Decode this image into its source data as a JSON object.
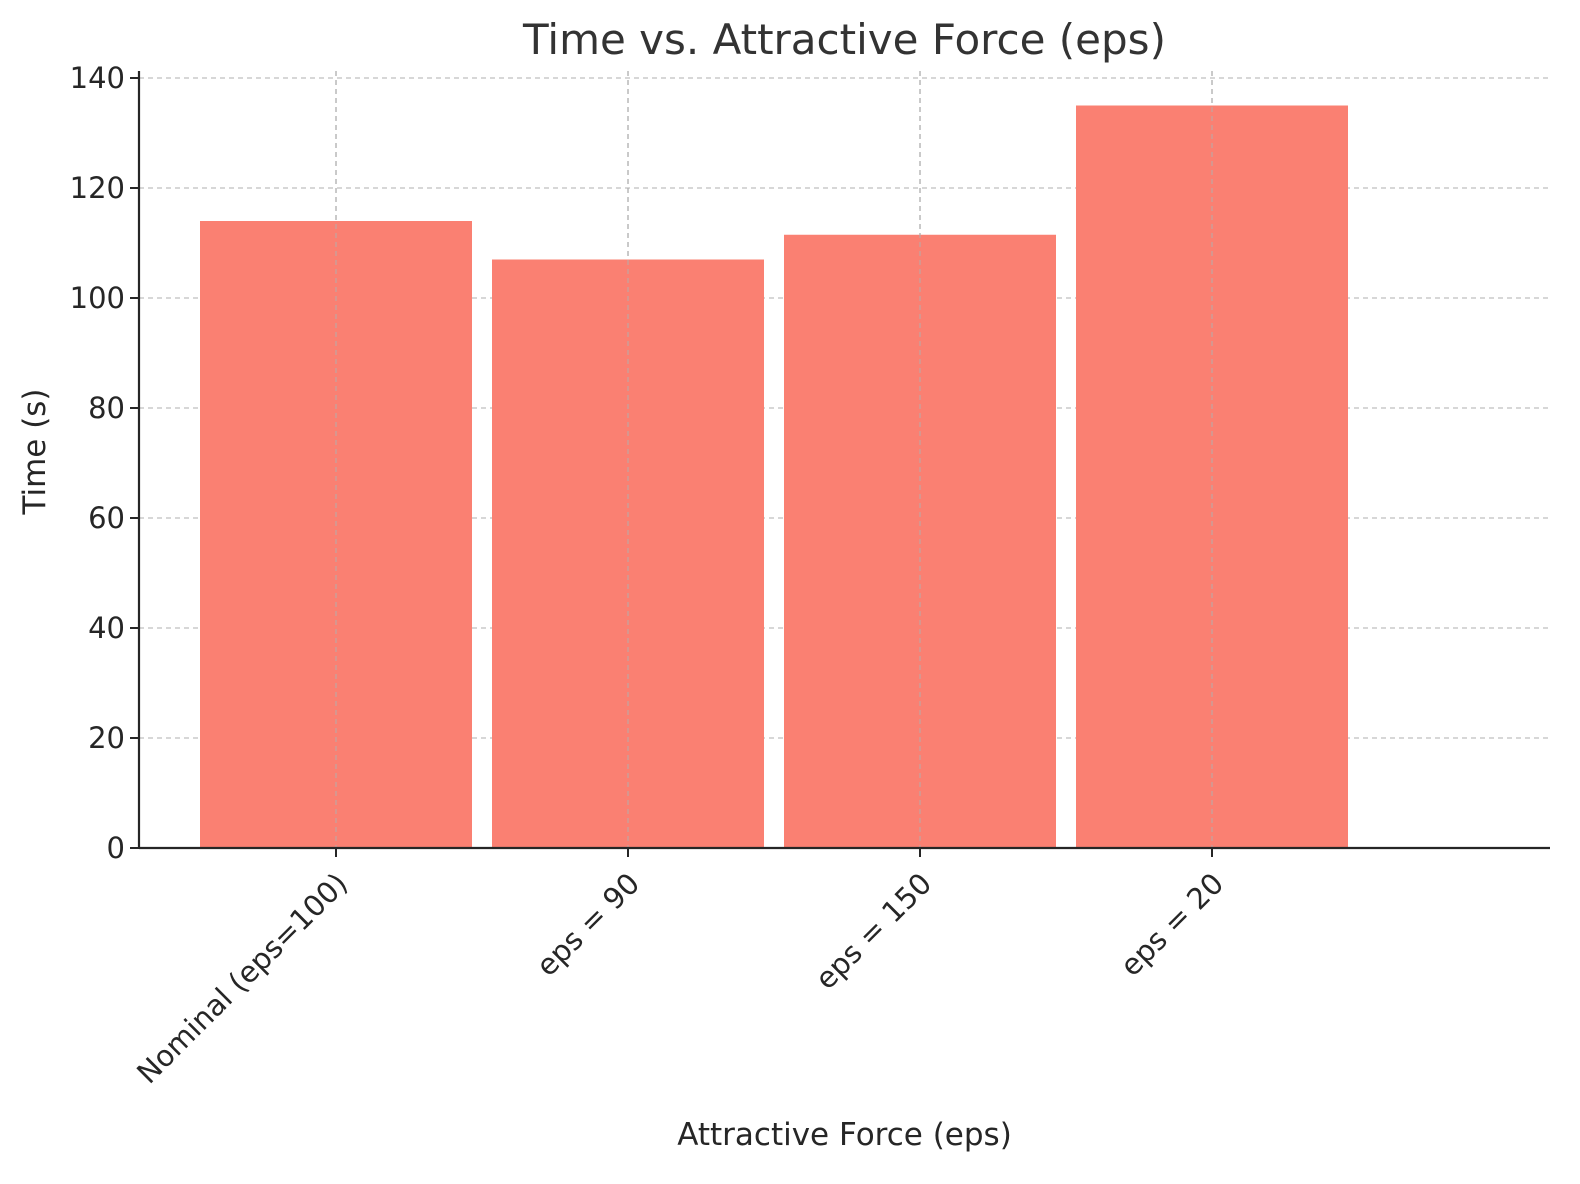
{
  "chart_data": {
    "type": "bar",
    "title": "Time vs. Attractive Force (eps)",
    "xlabel": "Attractive Force (eps)",
    "ylabel": "Time (s)",
    "categories": [
      "Nominal (eps=100)",
      "eps = 90",
      "eps = 150",
      "eps = 20"
    ],
    "values": [
      114,
      107,
      111.5,
      135
    ],
    "ylim": [
      0,
      140
    ],
    "yticks": [
      0,
      20,
      40,
      60,
      80,
      100,
      120,
      140
    ],
    "grid": true,
    "bar_color": "#fa8072",
    "text_color": "#262626",
    "title_color": "#333333",
    "grid_color": "#b0b0b0"
  }
}
